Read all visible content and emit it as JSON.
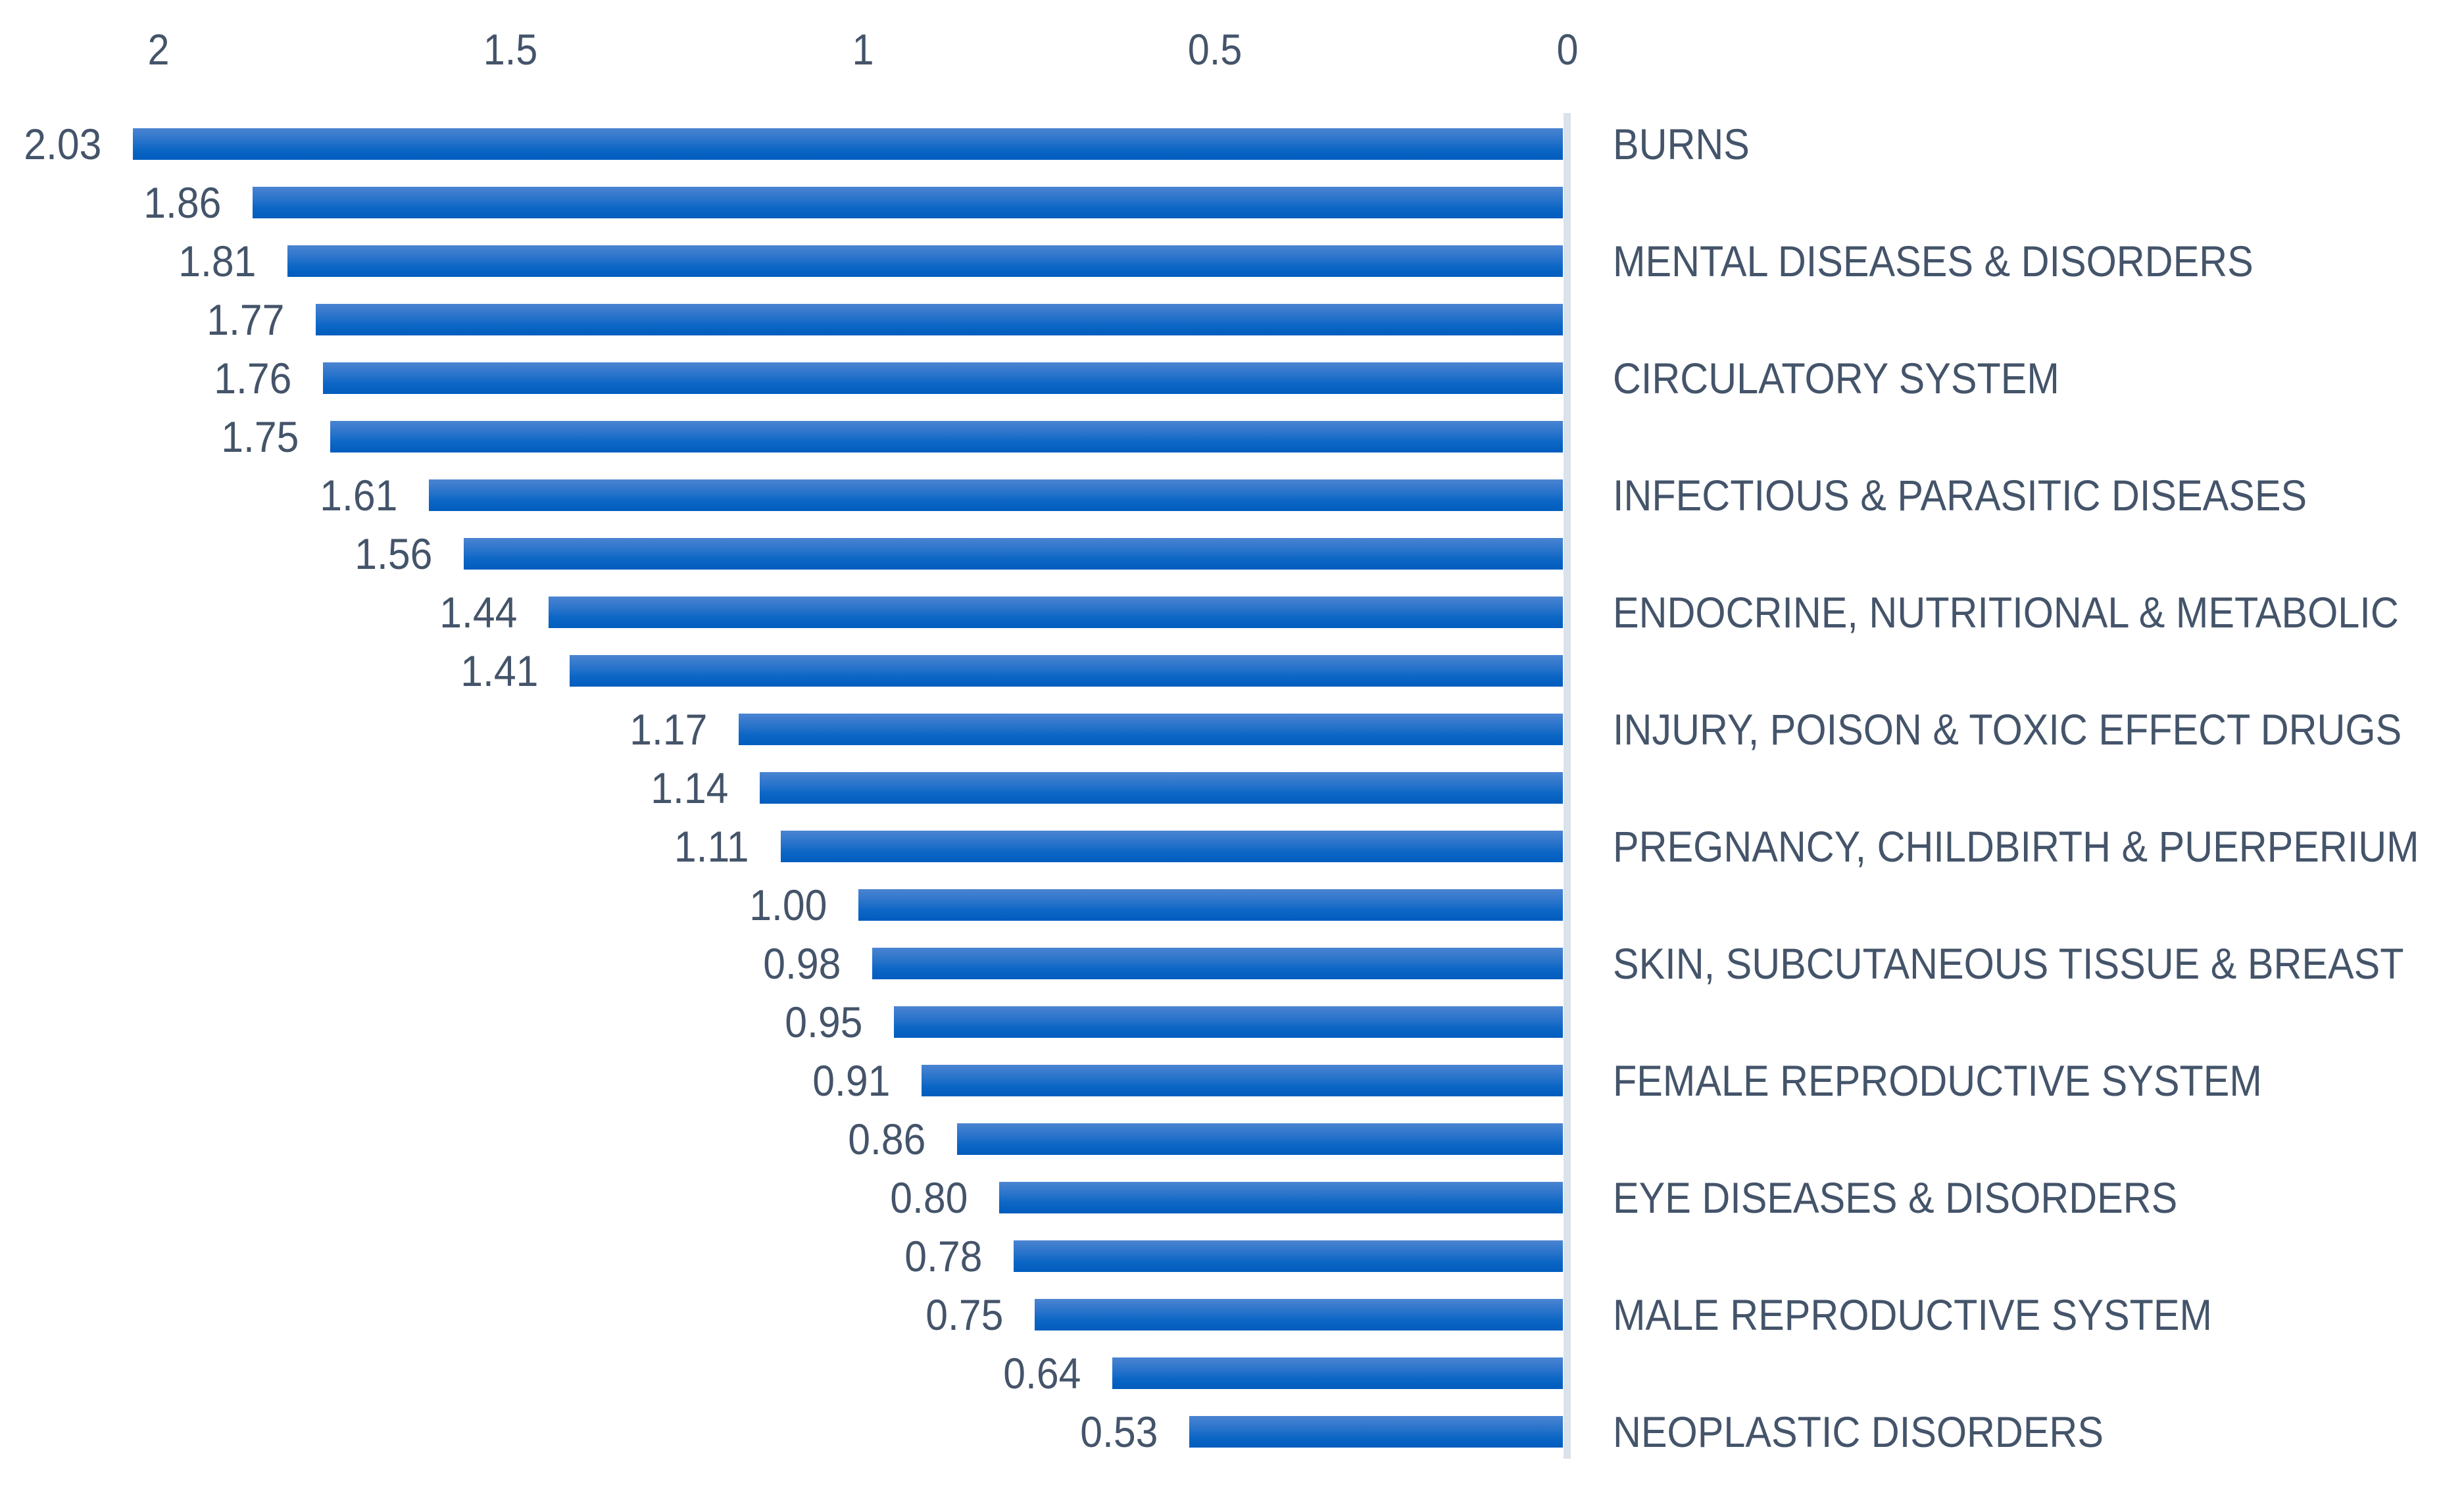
{
  "chart_data": {
    "type": "bar",
    "orientation": "horizontal",
    "title": "",
    "legend": "none",
    "gridlines": false,
    "x_axis": {
      "position": "top",
      "reversed": true,
      "tick_labels": [
        "2",
        "1.5",
        "1",
        "0.5",
        "0"
      ],
      "tick_values": [
        2,
        1.5,
        1,
        0.5,
        0
      ],
      "range": [
        0,
        2.2
      ]
    },
    "bars": [
      {
        "value": 2.03,
        "value_label": "2.03",
        "category": "BURNS"
      },
      {
        "value": 1.86,
        "value_label": "1.86",
        "category": ""
      },
      {
        "value": 1.81,
        "value_label": "1.81",
        "category": "MENTAL DISEASES & DISORDERS"
      },
      {
        "value": 1.77,
        "value_label": "1.77",
        "category": ""
      },
      {
        "value": 1.76,
        "value_label": "1.76",
        "category": "CIRCULATORY SYSTEM"
      },
      {
        "value": 1.75,
        "value_label": "1.75",
        "category": ""
      },
      {
        "value": 1.61,
        "value_label": "1.61",
        "category": "INFECTIOUS & PARASITIC DISEASES"
      },
      {
        "value": 1.56,
        "value_label": "1.56",
        "category": ""
      },
      {
        "value": 1.44,
        "value_label": "1.44",
        "category": "ENDOCRINE, NUTRITIONAL & METABOLIC"
      },
      {
        "value": 1.41,
        "value_label": "1.41",
        "category": ""
      },
      {
        "value": 1.17,
        "value_label": "1.17",
        "category": "INJURY, POISON & TOXIC EFFECT DRUGS"
      },
      {
        "value": 1.14,
        "value_label": "1.14",
        "category": ""
      },
      {
        "value": 1.11,
        "value_label": "1.11",
        "category": "PREGNANCY, CHILDBIRTH & PUERPERIUM"
      },
      {
        "value": 1.0,
        "value_label": "1.00",
        "category": ""
      },
      {
        "value": 0.98,
        "value_label": "0.98",
        "category": "SKIN, SUBCUTANEOUS TISSUE & BREAST"
      },
      {
        "value": 0.95,
        "value_label": "0.95",
        "category": ""
      },
      {
        "value": 0.91,
        "value_label": "0.91",
        "category": "FEMALE REPRODUCTIVE SYSTEM"
      },
      {
        "value": 0.86,
        "value_label": "0.86",
        "category": ""
      },
      {
        "value": 0.8,
        "value_label": "0.80",
        "category": "EYE DISEASES & DISORDERS"
      },
      {
        "value": 0.78,
        "value_label": "0.78",
        "category": ""
      },
      {
        "value": 0.75,
        "value_label": "0.75",
        "category": "MALE REPRODUCTIVE SYSTEM"
      },
      {
        "value": 0.64,
        "value_label": "0.64",
        "category": ""
      },
      {
        "value": 0.53,
        "value_label": "0.53",
        "category": "NEOPLASTIC DISORDERS"
      }
    ],
    "colors": {
      "bar_gradient_top": "#4b84d1",
      "bar_gradient_bottom": "#005cbe",
      "axis_baseline": "#dae2ea",
      "text": "#44546a",
      "background": "#ffffff"
    }
  }
}
